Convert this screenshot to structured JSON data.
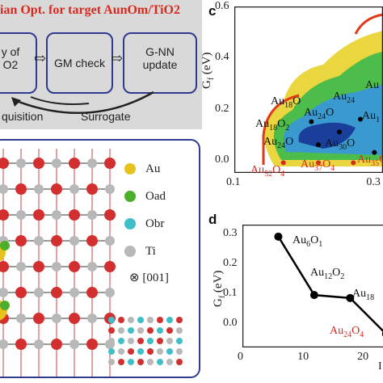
{
  "panel_a": {
    "title": "ian Opt. for target AunOm/TiO2",
    "box1_line1": "y of",
    "box1_line2": "O2",
    "box2": "GM check",
    "box3_line1": "G-NN",
    "box3_line2": "update",
    "loop_left": "quisition",
    "loop_right": "Surrogate"
  },
  "panel_b": {
    "legend": [
      "Au",
      "Oad",
      "Obr",
      "Ti"
    ],
    "legend_colors": [
      "#e8c21c",
      "#4caf2a",
      "#3fbfc9",
      "#b8b8b8"
    ],
    "direction": "⊗ [001]"
  },
  "panel_c": {
    "label": "c",
    "ylabel": "Gf (eV)",
    "annotations_black": [
      "Au18O",
      "Au24O",
      "Au24",
      "Au",
      "Au1",
      "Au18O2",
      "Au24O",
      "Au30O"
    ],
    "annotations_red": [
      "Au52O4",
      "Au37O4",
      "Au35O"
    ]
  },
  "panel_d": {
    "label": "d",
    "ylabel": "Gf (eV)",
    "xlabel_partial": "I",
    "annotations_black": [
      "Au6O1",
      "Au12O2",
      "Au18"
    ],
    "annotations_red": [
      "Au24O4"
    ]
  },
  "chart_data": [
    {
      "type": "heatmap",
      "xlim": [
        0.1,
        0.4
      ],
      "ylim": [
        -0.05,
        0.6
      ],
      "xticks": [
        "0.1",
        "0.3"
      ],
      "yticks": [
        "0.6",
        "0.4",
        "0.2",
        "0.0"
      ],
      "points_black": [
        {
          "x": 0.21,
          "y": 0.15
        },
        {
          "x": 0.25,
          "y": 0.11
        },
        {
          "x": 0.28,
          "y": 0.16
        },
        {
          "x": 0.22,
          "y": 0.06
        },
        {
          "x": 0.3,
          "y": 0.03
        },
        {
          "x": 0.34,
          "y": 0.04
        },
        {
          "x": 0.36,
          "y": 0.17
        }
      ],
      "points_red": [
        {
          "x": 0.17,
          "y": -0.01
        },
        {
          "x": 0.22,
          "y": -0.01
        },
        {
          "x": 0.27,
          "y": -0.01
        },
        {
          "x": 0.33,
          "y": -0.01
        },
        {
          "x": 0.37,
          "y": -0.01
        }
      ]
    },
    {
      "type": "line",
      "xlim": [
        0,
        27
      ],
      "ylim": [
        -0.08,
        0.33
      ],
      "xticks": [
        "0",
        "10",
        "20"
      ],
      "yticks": [
        "0.3",
        "0.2",
        "0.1",
        "0.0"
      ],
      "x": [
        6,
        12,
        18,
        24
      ],
      "y": [
        0.29,
        0.095,
        0.085,
        -0.035
      ]
    }
  ]
}
